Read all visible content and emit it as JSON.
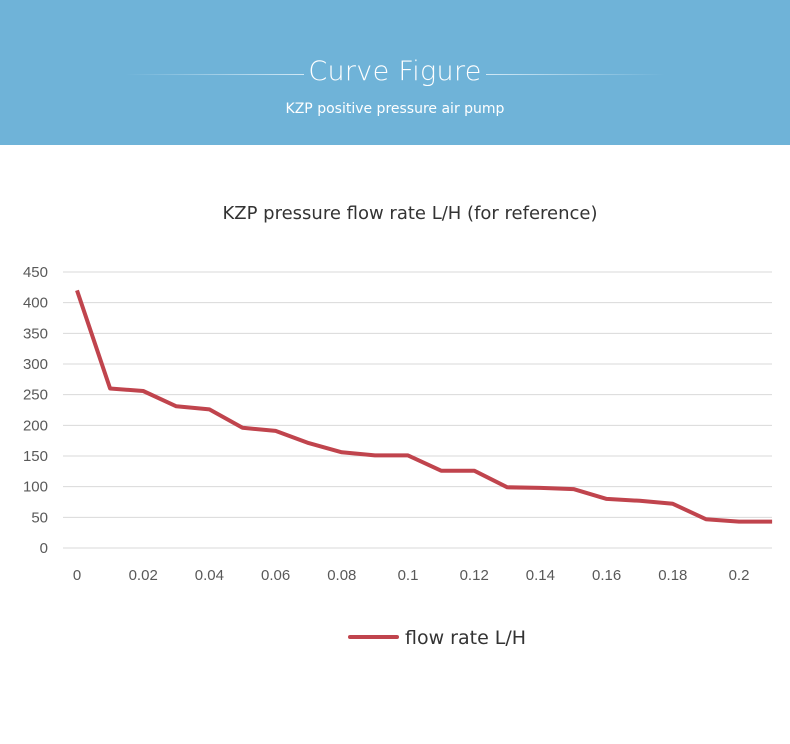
{
  "banner": {
    "title": "Curve Figure",
    "subtitle": "KZP positive pressure air pump",
    "background_color": "#6fb3d8"
  },
  "chart_data": {
    "type": "line",
    "title": "KZP pressure flow rate L/H (for reference)",
    "xlabel": "",
    "ylabel": "",
    "x": [
      0,
      0.01,
      0.02,
      0.03,
      0.04,
      0.05,
      0.06,
      0.07,
      0.08,
      0.09,
      0.1,
      0.11,
      0.12,
      0.13,
      0.14,
      0.15,
      0.16,
      0.17,
      0.18,
      0.19,
      0.2,
      0.21
    ],
    "series": [
      {
        "name": "flow rate L/H",
        "color": "#c0444d",
        "values": [
          420,
          260,
          256,
          231,
          226,
          196,
          191,
          171,
          156,
          151,
          151,
          126,
          126,
          99,
          98,
          96,
          80,
          77,
          72,
          47,
          43,
          43
        ]
      }
    ],
    "xlim": [
      0,
      0.21
    ],
    "ylim": [
      0,
      450
    ],
    "yticks": [
      "0",
      "50",
      "100",
      "150",
      "200",
      "250",
      "300",
      "350",
      "400",
      "450"
    ],
    "xticks": [
      "0",
      "0.02",
      "0.04",
      "0.06",
      "0.08",
      "0.1",
      "0.12",
      "0.14",
      "0.16",
      "0.18",
      "0.2"
    ],
    "grid": true,
    "legend_position": "bottom-center"
  }
}
